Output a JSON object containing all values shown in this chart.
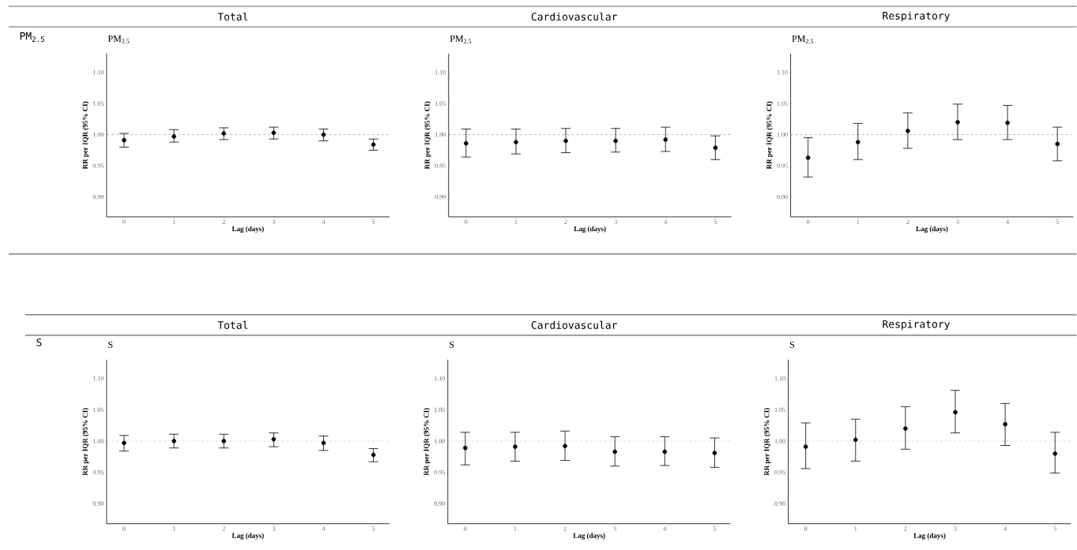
{
  "chart_data": [
    {
      "type": "scatter",
      "title": "Total",
      "subtitle": "PM$_{2.5}$",
      "annotations": [
        "PM$_{2.5}$"
      ],
      "xlabel": "Lag (days)",
      "ylabel": "RR per IQR (95% CI)",
      "color": "#000000",
      "marker": "circle",
      "x": [
        0,
        1,
        2,
        3,
        4,
        5
      ],
      "xlim": [
        -0.35,
        5.32
      ],
      "xticks": [
        0,
        1,
        2,
        3,
        4,
        5
      ],
      "ylim": [
        0.868,
        1.13
      ],
      "yticks": [
        {
          "value": 0.9,
          "label": "0.90"
        },
        {
          "value": 0.95,
          "label": "0.95"
        },
        {
          "value": 1.0,
          "label": "1.00"
        },
        {
          "value": 1.05,
          "label": "1.05"
        },
        {
          "value": 1.1,
          "label": "1.10"
        }
      ],
      "ref_lines": [
        {
          "axis": "y",
          "value": 1.0,
          "color": "#7f7f7f",
          "line_style": "dashed"
        }
      ],
      "values": [
        0.991,
        0.997,
        1.002,
        1.003,
        1.0,
        0.984
      ],
      "errors": [
        [
          0.98,
          1.002
        ],
        [
          0.988,
          1.008
        ],
        [
          0.992,
          1.011
        ],
        [
          0.993,
          1.012
        ],
        [
          0.99,
          1.009
        ],
        [
          0.975,
          0.993
        ]
      ]
    },
    {
      "type": "scatter",
      "title": "Cardiovascular",
      "subtitle": "PM$_{2.5}$",
      "xlabel": "Lag (days)",
      "ylabel": "RR per IQR (95% CI)",
      "color": "#000000",
      "marker": "circle",
      "x": [
        0,
        1,
        2,
        3,
        4,
        5
      ],
      "xlim": [
        -0.35,
        5.32
      ],
      "xticks": [
        0,
        1,
        2,
        3,
        4,
        5
      ],
      "ylim": [
        0.868,
        1.13
      ],
      "yticks": [
        {
          "value": 0.9,
          "label": "0.90"
        },
        {
          "value": 0.95,
          "label": "0.95"
        },
        {
          "value": 1.0,
          "label": "1.00"
        },
        {
          "value": 1.05,
          "label": "1.05"
        },
        {
          "value": 1.1,
          "label": "1.10"
        }
      ],
      "ref_lines": [
        {
          "axis": "y",
          "value": 1.0,
          "color": "#7f7f7f",
          "line_style": "dashed"
        }
      ],
      "values": [
        0.986,
        0.988,
        0.99,
        0.99,
        0.992,
        0.979
      ],
      "errors": [
        [
          0.964,
          1.009
        ],
        [
          0.969,
          1.009
        ],
        [
          0.971,
          1.01
        ],
        [
          0.972,
          1.01
        ],
        [
          0.973,
          1.012
        ],
        [
          0.96,
          0.998
        ]
      ]
    },
    {
      "type": "scatter",
      "title": "Respiratory",
      "subtitle": "PM$_{2.5}$",
      "xlabel": "Lag (days)",
      "ylabel": "RR per IQR (95% CI)",
      "color": "#000000",
      "marker": "circle",
      "x": [
        0,
        1,
        2,
        3,
        4,
        5
      ],
      "xlim": [
        -0.35,
        5.32
      ],
      "xticks": [
        0,
        1,
        2,
        3,
        4,
        5
      ],
      "ylim": [
        0.868,
        1.13
      ],
      "yticks": [
        {
          "value": 0.9,
          "label": "0.90"
        },
        {
          "value": 0.95,
          "label": "0.95"
        },
        {
          "value": 1.0,
          "label": "1.00"
        },
        {
          "value": 1.05,
          "label": "1.05"
        },
        {
          "value": 1.1,
          "label": "1.10"
        }
      ],
      "ref_lines": [
        {
          "axis": "y",
          "value": 1.0,
          "color": "#7f7f7f",
          "line_style": "dashed"
        }
      ],
      "values": [
        0.963,
        0.988,
        1.006,
        1.02,
        1.019,
        0.985
      ],
      "errors": [
        [
          0.932,
          0.995
        ],
        [
          0.96,
          1.018
        ],
        [
          0.978,
          1.035
        ],
        [
          0.992,
          1.049
        ],
        [
          0.992,
          1.047
        ],
        [
          0.958,
          1.012
        ]
      ]
    },
    {
      "type": "scatter",
      "title": "Total",
      "subtitle": "S",
      "annotations": [
        "S"
      ],
      "xlabel": "Lag (days)",
      "ylabel": "RR per IQR (95% CI)",
      "color": "#000000",
      "marker": "circle",
      "x": [
        0,
        1,
        2,
        3,
        4,
        5
      ],
      "xlim": [
        -0.35,
        5.32
      ],
      "xticks": [
        0,
        1,
        2,
        3,
        4,
        5
      ],
      "ylim": [
        0.868,
        1.13
      ],
      "yticks": [
        {
          "value": 0.9,
          "label": "0.90"
        },
        {
          "value": 0.95,
          "label": "0.95"
        },
        {
          "value": 1.0,
          "label": "1.00"
        },
        {
          "value": 1.05,
          "label": "1.05"
        },
        {
          "value": 1.1,
          "label": "1.10"
        }
      ],
      "ref_lines": [
        {
          "axis": "y",
          "value": 1.0,
          "color": "#bfbfbf",
          "line_style": "dashed"
        }
      ],
      "values": [
        0.997,
        1.0,
        1.0,
        1.003,
        0.997,
        0.978
      ],
      "errors": [
        [
          0.984,
          1.009
        ],
        [
          0.989,
          1.011
        ],
        [
          0.989,
          1.011
        ],
        [
          0.991,
          1.013
        ],
        [
          0.985,
          1.008
        ],
        [
          0.967,
          0.988
        ]
      ]
    },
    {
      "type": "scatter",
      "title": "Cardiovascular",
      "subtitle": "S",
      "xlabel": "Lag (days)",
      "ylabel": "RR per IQR (95% CI)",
      "color": "#000000",
      "marker": "circle",
      "x": [
        0,
        1,
        2,
        3,
        4,
        5
      ],
      "xlim": [
        -0.35,
        5.32
      ],
      "xticks": [
        0,
        1,
        2,
        3,
        4,
        5
      ],
      "ylim": [
        0.868,
        1.13
      ],
      "yticks": [
        {
          "value": 0.9,
          "label": "0.90"
        },
        {
          "value": 0.95,
          "label": "0.95"
        },
        {
          "value": 1.0,
          "label": "1.00"
        },
        {
          "value": 1.05,
          "label": "1.05"
        },
        {
          "value": 1.1,
          "label": "1.10"
        }
      ],
      "ref_lines": [
        {
          "axis": "y",
          "value": 1.0,
          "color": "#bfbfbf",
          "line_style": "dashed"
        }
      ],
      "values": [
        0.989,
        0.991,
        0.992,
        0.983,
        0.983,
        0.981
      ],
      "errors": [
        [
          0.962,
          1.014
        ],
        [
          0.968,
          1.014
        ],
        [
          0.969,
          1.016
        ],
        [
          0.96,
          1.007
        ],
        [
          0.961,
          1.007
        ],
        [
          0.958,
          1.005
        ]
      ]
    },
    {
      "type": "scatter",
      "title": "Respiratory",
      "subtitle": "S",
      "xlabel": "Lag (days)",
      "ylabel": "RR per IQR (95% CI)",
      "color": "#000000",
      "marker": "circle",
      "x": [
        0,
        1,
        2,
        3,
        4,
        5
      ],
      "xlim": [
        -0.35,
        5.32
      ],
      "xticks": [
        0,
        1,
        2,
        3,
        4,
        5
      ],
      "ylim": [
        0.868,
        1.13
      ],
      "yticks": [
        {
          "value": 0.9,
          "label": "0.90"
        },
        {
          "value": 0.95,
          "label": "0.95"
        },
        {
          "value": 1.0,
          "label": "1.00"
        },
        {
          "value": 1.05,
          "label": "1.05"
        },
        {
          "value": 1.1,
          "label": "1.10"
        }
      ],
      "ref_lines": [
        {
          "axis": "y",
          "value": 1.0,
          "color": "#bfbfbf",
          "line_style": "dashed"
        }
      ],
      "values": [
        0.991,
        1.002,
        1.02,
        1.046,
        1.027,
        0.98
      ],
      "errors": [
        [
          0.956,
          1.029
        ],
        [
          0.968,
          1.035
        ],
        [
          0.987,
          1.055
        ],
        [
          1.013,
          1.081
        ],
        [
          0.993,
          1.06
        ],
        [
          0.949,
          1.014
        ]
      ]
    }
  ]
}
